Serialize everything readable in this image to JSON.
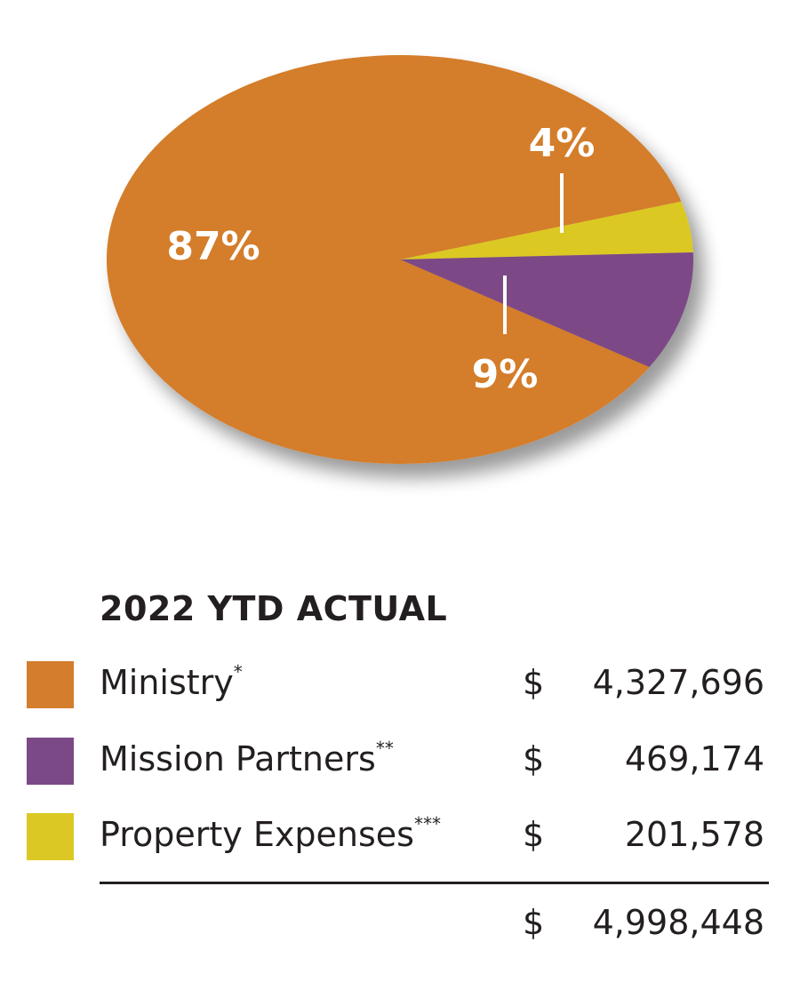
{
  "chart_data": {
    "type": "pie",
    "title": "2022 YTD ACTUAL",
    "slices": [
      {
        "label": "Ministry",
        "marker": "*",
        "value": 4327696,
        "display_value": "4,327,696",
        "percent_label": "87%",
        "color": "#d47d2c"
      },
      {
        "label": "Mission Partners",
        "marker": "**",
        "value": 469174,
        "display_value": "469,174",
        "percent_label": "9%",
        "color": "#7b4a86"
      },
      {
        "label": "Property Expenses",
        "marker": "***",
        "value": 201578,
        "display_value": "201,578",
        "percent_label": "4%",
        "color": "#dcc824"
      }
    ],
    "currency_symbol": "$",
    "total": 4998448,
    "total_display": "4,998,448",
    "legend_position": "bottom"
  }
}
